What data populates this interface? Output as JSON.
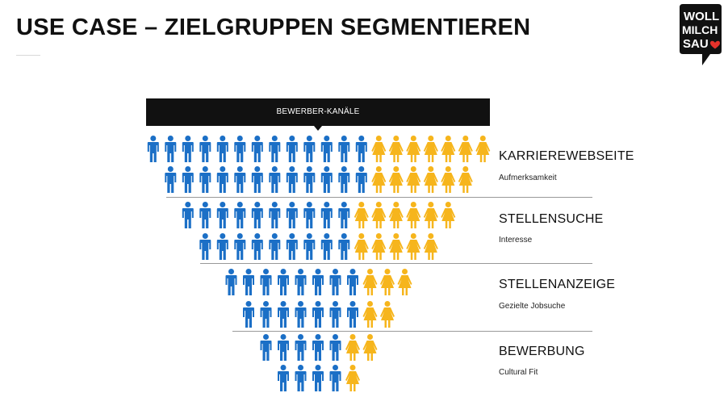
{
  "header": {
    "title": "USE CASE – ZIELGRUPPEN SEGMENTIEREN"
  },
  "logo": {
    "lines": [
      "WOLL",
      "MILCH",
      "SAU"
    ],
    "heart_color": "#e4322b",
    "background": "#111111"
  },
  "funnel": {
    "banner_label": "BEWERBER-KANÄLE",
    "colors": {
      "blue": "#1b6fc6",
      "yellow": "#f6b51c",
      "banner": "#111111"
    },
    "rows": [
      {
        "blue": 13,
        "yellow": 7
      },
      {
        "blue": 12,
        "yellow": 6
      },
      {
        "blue": 10,
        "yellow": 6
      },
      {
        "blue": 9,
        "yellow": 5
      },
      {
        "blue": 8,
        "yellow": 3
      },
      {
        "blue": 7,
        "yellow": 2
      },
      {
        "blue": 5,
        "yellow": 2
      },
      {
        "blue": 4,
        "yellow": 1
      }
    ],
    "stages": [
      {
        "title": "KARRIEREWEBSEITE",
        "subtitle": "Aufmerksamkeit"
      },
      {
        "title": "STELLENSUCHE",
        "subtitle": "Interesse"
      },
      {
        "title": "STELLENANZEIGE",
        "subtitle": "Gezielte Jobsuche"
      },
      {
        "title": "BEWERBUNG",
        "subtitle": "Cultural Fit"
      }
    ]
  }
}
